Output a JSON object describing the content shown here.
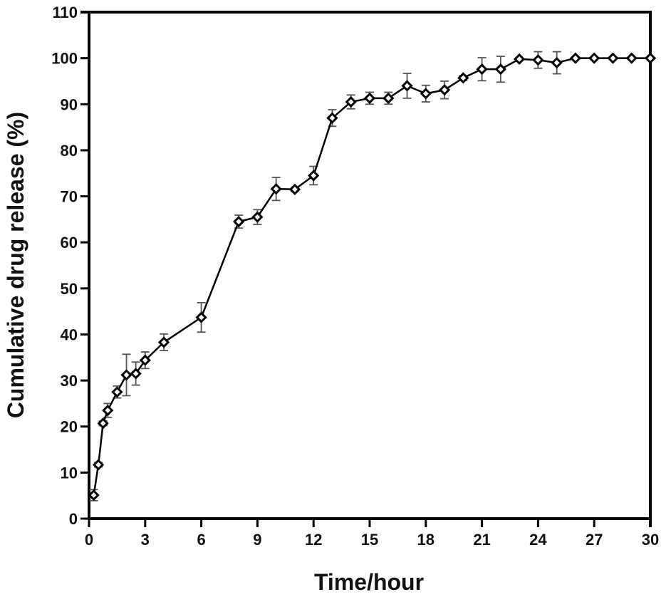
{
  "chart_data": {
    "type": "line",
    "title": "",
    "xlabel": "Time/hour",
    "ylabel": "Cumulative drug release (%)",
    "xlim": [
      0,
      30
    ],
    "ylim": [
      0,
      110
    ],
    "xticks": [
      0,
      3,
      6,
      9,
      12,
      15,
      18,
      21,
      24,
      27,
      30
    ],
    "yticks": [
      0,
      10,
      20,
      30,
      40,
      50,
      60,
      70,
      80,
      90,
      100,
      110
    ],
    "grid": false,
    "legend": null,
    "marker": "open-diamond",
    "line_color": "#000000",
    "error_bar_color": "#555555",
    "series": [
      {
        "name": "Cumulative drug release",
        "x": [
          0.25,
          0.5,
          0.75,
          1,
          1.5,
          2,
          2.5,
          3,
          4,
          6,
          8,
          9,
          10,
          11,
          12,
          13,
          14,
          15,
          16,
          17,
          18,
          19,
          20,
          21,
          22,
          23,
          24,
          25,
          26,
          27,
          28,
          29,
          30
        ],
        "y": [
          5.1,
          11.7,
          20.7,
          23.5,
          27.5,
          31.2,
          31.5,
          34.4,
          38.3,
          43.7,
          64.5,
          65.5,
          71.6,
          71.5,
          74.5,
          87.0,
          90.5,
          91.3,
          91.3,
          94.0,
          92.3,
          93.1,
          95.7,
          97.6,
          97.6,
          99.8,
          99.6,
          99.0,
          100,
          100,
          100,
          100,
          100
        ],
        "err": [
          1.2,
          0.5,
          0.5,
          1.5,
          1.3,
          4.5,
          2.5,
          1.8,
          1.8,
          3.2,
          1.4,
          1.6,
          2.5,
          0.4,
          2.0,
          1.8,
          1.5,
          1.3,
          1.3,
          2.7,
          1.8,
          1.9,
          0.5,
          2.5,
          2.8,
          0.3,
          1.8,
          2.4,
          0.2,
          0.2,
          0.2,
          0.2,
          0.2
        ]
      }
    ]
  }
}
